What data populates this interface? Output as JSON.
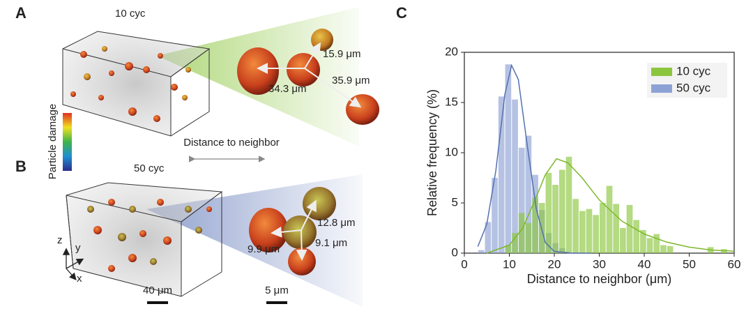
{
  "panel_a": {
    "label": "A",
    "title": "10 cyc",
    "distances": [
      "15.9 μm",
      "34.3 μm",
      "35.9 μm"
    ]
  },
  "colorbar_label": "Particle damage",
  "arrow_label": "Distance to neighbor",
  "panel_b": {
    "label": "B",
    "title": "50 cyc",
    "distances": [
      "12.8 μm",
      "9.9 μm",
      "9.1 μm"
    ],
    "axes": [
      "z",
      "y",
      "x"
    ],
    "scale_bars": [
      "40 μm",
      "5 μm"
    ]
  },
  "panel_c": {
    "label": "C"
  },
  "chart_data": {
    "type": "histogram",
    "xlabel": "Distance to neighbor (μm)",
    "ylabel": "Relative frequency (%)",
    "bins": [
      3,
      4.5,
      6,
      7.5,
      9,
      10.5,
      12,
      13.5,
      15,
      16.5,
      18,
      19.5,
      21,
      22.5,
      24,
      25.5,
      27,
      28.5,
      30,
      31.5,
      33,
      34.5,
      36,
      37.5,
      39,
      40.5,
      42,
      43.5,
      45,
      46.5,
      48,
      49.5,
      51,
      52.5,
      54,
      55.5,
      57,
      58.5
    ],
    "series": [
      {
        "name": "10 cyc",
        "color": "#8cc63f",
        "line_color": "#7cb82a",
        "values": [
          0,
          0,
          0,
          0,
          0.8,
          2,
          4,
          3,
          5.5,
          5,
          8,
          6.8,
          8.3,
          9.6,
          5.4,
          4.2,
          4.4,
          3.8,
          5,
          6.7,
          4.9,
          2.5,
          4.8,
          3.3,
          2.3,
          1.5,
          1.9,
          0.8,
          0.7,
          0,
          0,
          0,
          0,
          0,
          0.6,
          0,
          0.4
        ],
        "fit": {
          "x": [
            5,
            10,
            13,
            16,
            18,
            20.5,
            23,
            26,
            30,
            35,
            40,
            45,
            50,
            55,
            60
          ],
          "y": [
            0,
            0.8,
            2.5,
            5.6,
            7.8,
            9.4,
            9.0,
            7.6,
            5.3,
            3.2,
            1.9,
            1.1,
            0.6,
            0.3,
            0.2
          ]
        }
      },
      {
        "name": "50 cyc",
        "color": "#8da2d4",
        "line_color": "#5470b0",
        "values": [
          0.3,
          3.1,
          7.5,
          15.6,
          18.8,
          15.3,
          10.5,
          11.7,
          7.8,
          4.3,
          2,
          1,
          0.5,
          0,
          0,
          0,
          0,
          0,
          0,
          0,
          0,
          0,
          0,
          0,
          0,
          0,
          0,
          0,
          0,
          0,
          0,
          0,
          0,
          0,
          0,
          0,
          0
        ],
        "fit": {
          "x": [
            3,
            5,
            7,
            9,
            10.5,
            12,
            14,
            16,
            18,
            20,
            24,
            28
          ],
          "y": [
            0.65,
            2.9,
            8.2,
            15.8,
            18.7,
            17.3,
            10.7,
            4.4,
            1.06,
            0.17,
            0,
            0
          ]
        }
      }
    ],
    "xlim": [
      0,
      60
    ],
    "xticks": [
      0,
      10,
      20,
      30,
      40,
      50,
      60
    ],
    "ylim": [
      0,
      20
    ],
    "yticks": [
      0,
      5,
      10,
      15,
      20
    ],
    "legend": "top-right"
  }
}
